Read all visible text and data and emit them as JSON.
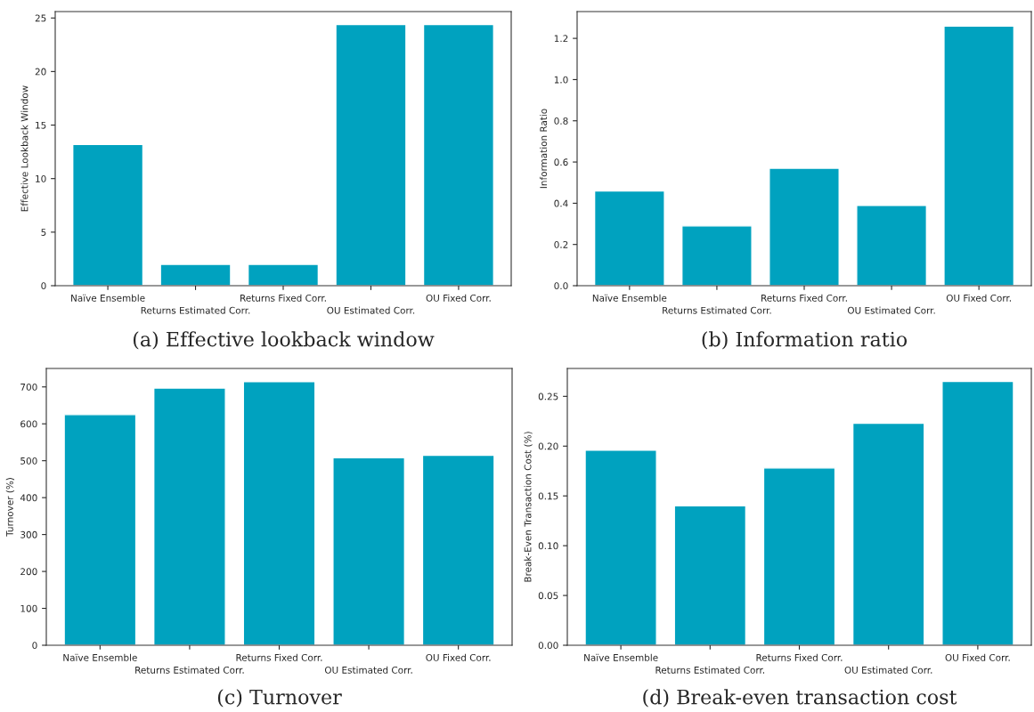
{
  "chart_data": [
    {
      "type": "bar",
      "categories": [
        "Naïve Ensemble",
        "Returns Estimated Corr.",
        "Returns Fixed Corr.",
        "OU Estimated Corr.",
        "OU Fixed Corr."
      ],
      "values": [
        13.2,
        2.0,
        2.0,
        24.4,
        24.4
      ],
      "color": "#00a2bf",
      "ylabel": "Effective Lookback Window",
      "ylim": [
        0,
        25.6
      ],
      "yticks": [
        0,
        5,
        10,
        15,
        20,
        25
      ],
      "grid": false,
      "annotations": [
        "(a) Effective lookback window"
      ]
    },
    {
      "type": "bar",
      "categories": [
        "Naïve Ensemble",
        "Returns Estimated Corr.",
        "Returns Fixed Corr.",
        "OU Estimated Corr.",
        "OU Fixed Corr."
      ],
      "values": [
        0.46,
        0.29,
        0.57,
        0.39,
        1.26
      ],
      "color": "#00a2bf",
      "ylabel": "Information Ratio",
      "ylim": [
        0,
        1.33
      ],
      "yticks": [
        {
          "value": 0,
          "label": "0.0"
        },
        0.2,
        0.4,
        0.6,
        0.8,
        {
          "value": 1,
          "label": "1.0"
        },
        1.2
      ],
      "grid": false,
      "annotations": [
        "(b) Information ratio"
      ]
    },
    {
      "type": "bar",
      "categories": [
        "Naïve Ensemble",
        "Returns Estimated Corr.",
        "Returns Fixed Corr.",
        "OU Estimated Corr.",
        "OU Fixed Corr."
      ],
      "values": [
        625,
        697,
        714,
        508,
        515
      ],
      "color": "#00a2bf",
      "ylabel": "Turnover (%)",
      "ylim": [
        0,
        750
      ],
      "yticks": [
        0,
        100,
        200,
        300,
        400,
        500,
        600,
        700
      ],
      "grid": false,
      "annotations": [
        "(c) Turnover"
      ]
    },
    {
      "type": "bar",
      "categories": [
        "Naïve Ensemble",
        "Returns Estimated Corr.",
        "Returns Fixed Corr.",
        "OU Estimated Corr.",
        "OU Fixed Corr."
      ],
      "values": [
        0.196,
        0.14,
        0.178,
        0.223,
        0.265
      ],
      "color": "#00a2bf",
      "ylabel": "Break-Even Transaction Cost (%)",
      "ylim": [
        0,
        0.278
      ],
      "yticks": [
        {
          "value": 0,
          "label": "0.00"
        },
        {
          "value": 0.05,
          "label": "0.05"
        },
        {
          "value": 0.1,
          "label": "0.10"
        },
        {
          "value": 0.15,
          "label": "0.15"
        },
        {
          "value": 0.2,
          "label": "0.20"
        },
        {
          "value": 0.25,
          "label": "0.25"
        }
      ],
      "grid": false,
      "annotations": [
        "(d) Break-even transaction cost"
      ]
    }
  ]
}
